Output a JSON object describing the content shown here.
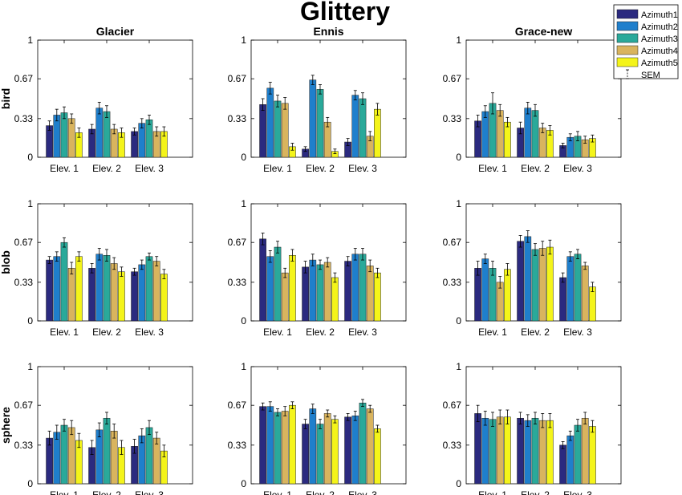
{
  "title": "Glittery",
  "legend": {
    "placement": "top-right",
    "sem_label": "SEM",
    "entries": [
      {
        "name": "Azimuth1",
        "color": "#2b2a7f"
      },
      {
        "name": "Azimuth2",
        "color": "#1f7fcc"
      },
      {
        "name": "Azimuth3",
        "color": "#2aa99a"
      },
      {
        "name": "Azimuth4",
        "color": "#d9b45e"
      },
      {
        "name": "Azimuth5",
        "color": "#f4f41a"
      }
    ]
  },
  "chart_data": {
    "type": "bar",
    "columns": [
      "Glacier",
      "Ennis",
      "Grace-new"
    ],
    "rows": [
      "bird",
      "blob",
      "sphere"
    ],
    "categories": [
      "Elev. 1",
      "Elev. 2",
      "Elev. 3"
    ],
    "series_names": [
      "Azimuth1",
      "Azimuth2",
      "Azimuth3",
      "Azimuth4",
      "Azimuth5"
    ],
    "ylim": [
      0,
      1
    ],
    "yticks": [
      0,
      0.33,
      0.67,
      1
    ],
    "ytick_labels": [
      "0",
      "0.33",
      "0.67",
      "1"
    ],
    "grid": false,
    "error_bars": "SEM",
    "panels": [
      {
        "row": "bird",
        "column": "Glacier",
        "values": [
          [
            0.27,
            0.36,
            0.38,
            0.33,
            0.21
          ],
          [
            0.24,
            0.42,
            0.39,
            0.24,
            0.21
          ],
          [
            0.22,
            0.29,
            0.32,
            0.22,
            0.22
          ]
        ],
        "errors": [
          [
            0.04,
            0.05,
            0.05,
            0.04,
            0.04
          ],
          [
            0.04,
            0.05,
            0.05,
            0.04,
            0.04
          ],
          [
            0.03,
            0.04,
            0.04,
            0.04,
            0.04
          ]
        ]
      },
      {
        "row": "bird",
        "column": "Ennis",
        "values": [
          [
            0.45,
            0.59,
            0.48,
            0.46,
            0.09
          ],
          [
            0.07,
            0.66,
            0.58,
            0.3,
            0.05
          ],
          [
            0.13,
            0.53,
            0.5,
            0.18,
            0.41
          ]
        ],
        "errors": [
          [
            0.05,
            0.05,
            0.05,
            0.05,
            0.03
          ],
          [
            0.02,
            0.04,
            0.04,
            0.04,
            0.02
          ],
          [
            0.03,
            0.04,
            0.05,
            0.04,
            0.05
          ]
        ]
      },
      {
        "row": "bird",
        "column": "Grace-new",
        "values": [
          [
            0.31,
            0.39,
            0.46,
            0.4,
            0.3
          ],
          [
            0.25,
            0.42,
            0.4,
            0.25,
            0.23
          ],
          [
            0.1,
            0.17,
            0.18,
            0.15,
            0.16
          ]
        ],
        "errors": [
          [
            0.05,
            0.05,
            0.09,
            0.05,
            0.04
          ],
          [
            0.05,
            0.05,
            0.05,
            0.04,
            0.04
          ],
          [
            0.02,
            0.03,
            0.04,
            0.03,
            0.03
          ]
        ]
      },
      {
        "row": "blob",
        "column": "Glacier",
        "values": [
          [
            0.52,
            0.55,
            0.67,
            0.45,
            0.55
          ],
          [
            0.45,
            0.57,
            0.56,
            0.49,
            0.42
          ],
          [
            0.42,
            0.48,
            0.55,
            0.51,
            0.4
          ]
        ],
        "errors": [
          [
            0.03,
            0.04,
            0.04,
            0.05,
            0.04
          ],
          [
            0.04,
            0.05,
            0.05,
            0.05,
            0.04
          ],
          [
            0.03,
            0.04,
            0.03,
            0.04,
            0.04
          ]
        ]
      },
      {
        "row": "blob",
        "column": "Ennis",
        "values": [
          [
            0.7,
            0.55,
            0.63,
            0.41,
            0.56
          ],
          [
            0.46,
            0.52,
            0.48,
            0.5,
            0.37
          ],
          [
            0.51,
            0.57,
            0.57,
            0.47,
            0.41
          ]
        ],
        "errors": [
          [
            0.05,
            0.05,
            0.05,
            0.04,
            0.05
          ],
          [
            0.05,
            0.05,
            0.04,
            0.04,
            0.04
          ],
          [
            0.04,
            0.05,
            0.05,
            0.05,
            0.04
          ]
        ]
      },
      {
        "row": "blob",
        "column": "Grace-new",
        "values": [
          [
            0.45,
            0.53,
            0.45,
            0.33,
            0.44
          ],
          [
            0.68,
            0.72,
            0.61,
            0.62,
            0.63
          ],
          [
            0.37,
            0.55,
            0.57,
            0.47,
            0.29
          ]
        ],
        "errors": [
          [
            0.06,
            0.04,
            0.06,
            0.05,
            0.05
          ],
          [
            0.05,
            0.05,
            0.05,
            0.06,
            0.06
          ],
          [
            0.04,
            0.04,
            0.04,
            0.03,
            0.04
          ]
        ]
      },
      {
        "row": "sphere",
        "column": "Glacier",
        "values": [
          [
            0.39,
            0.44,
            0.5,
            0.48,
            0.37
          ],
          [
            0.31,
            0.46,
            0.56,
            0.45,
            0.31
          ],
          [
            0.32,
            0.41,
            0.48,
            0.39,
            0.28
          ]
        ],
        "errors": [
          [
            0.06,
            0.06,
            0.05,
            0.06,
            0.06
          ],
          [
            0.06,
            0.06,
            0.05,
            0.06,
            0.06
          ],
          [
            0.06,
            0.06,
            0.06,
            0.05,
            0.05
          ]
        ]
      },
      {
        "row": "sphere",
        "column": "Ennis",
        "values": [
          [
            0.66,
            0.66,
            0.61,
            0.62,
            0.67
          ],
          [
            0.51,
            0.64,
            0.51,
            0.6,
            0.55
          ],
          [
            0.57,
            0.58,
            0.69,
            0.64,
            0.47
          ]
        ],
        "errors": [
          [
            0.03,
            0.04,
            0.03,
            0.04,
            0.03
          ],
          [
            0.04,
            0.04,
            0.04,
            0.03,
            0.03
          ],
          [
            0.03,
            0.04,
            0.03,
            0.03,
            0.03
          ]
        ]
      },
      {
        "row": "sphere",
        "column": "Grace-new",
        "values": [
          [
            0.6,
            0.56,
            0.55,
            0.57,
            0.57
          ],
          [
            0.56,
            0.54,
            0.56,
            0.54,
            0.54
          ],
          [
            0.33,
            0.41,
            0.5,
            0.56,
            0.49
          ]
        ],
        "errors": [
          [
            0.07,
            0.06,
            0.06,
            0.06,
            0.06
          ],
          [
            0.05,
            0.05,
            0.05,
            0.06,
            0.06
          ],
          [
            0.03,
            0.04,
            0.05,
            0.05,
            0.05
          ]
        ]
      }
    ]
  }
}
